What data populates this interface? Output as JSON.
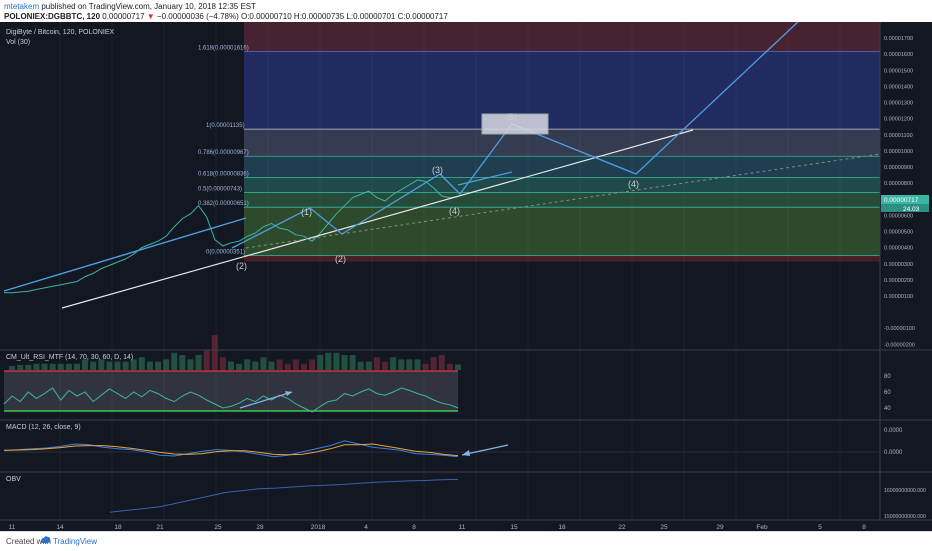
{
  "header": {
    "author": "mtetakem",
    "published": "published on TradingView.com, January 10, 2018 12:35 EST",
    "symbol": "POLONIEX:DGBBTC, 120",
    "last": "0.00000717",
    "change": "−0.00000036 (−4.78%)",
    "ohlc": "O:0.00000710 H:0.00000735 L:0.00000701 C:0.00000717"
  },
  "legend": {
    "title": "DigiByte / Bitcoin, 120, POLONIEX",
    "vol": "Vol (30)",
    "rsi": "CM_Ult_RSI_MTF (14, 70, 30, 60, D, 14)",
    "macd": "MACD (12, 26, close, 9)",
    "obv": "OBV"
  },
  "colors": {
    "background": "#131722",
    "price_line": "#3bb5a6",
    "trend_blue": "#4f9ee0",
    "trend_white": "#e8e8e8",
    "rsi_line": "#3bb5a6",
    "rsi_band_high": "#e5364e",
    "rsi_band_low": "#3ce84c",
    "macd_line": "#3b7fe0",
    "signal_line": "#e8a33c",
    "obv_line": "#3b5fb0",
    "arrow": "#8ab4e8"
  },
  "chart_data": [
    {
      "type": "line",
      "name": "price",
      "x_ticks": [
        "11",
        "14",
        "18",
        "21",
        "25",
        "28",
        "2018",
        "4",
        "8",
        "11",
        "15",
        "18",
        "22",
        "25",
        "29",
        "Feb",
        "5",
        "8"
      ],
      "y_ticks": [
        "0.00001700",
        "0.00001600",
        "0.00001500",
        "0.00001400",
        "0.00001300",
        "0.00001200",
        "0.00001100",
        "0.00001000",
        "0.00000900",
        "0.00000800",
        "0.00000700",
        "0.00000600",
        "0.00000500",
        "0.00000400",
        "0.00000300",
        "0.00000200",
        "0.00000100",
        "-0.00000100",
        "-0.00000200"
      ],
      "ylim": [
        -2.35e-06,
        1.75e-05
      ],
      "price_label": "0.00000717",
      "price_sublabel": "24.03",
      "values": [
        1.2e-06,
        1.2e-06,
        1.25e-06,
        1.3e-06,
        1.4e-06,
        1.5e-06,
        1.6e-06,
        1.7e-06,
        1.8e-06,
        1.9e-06,
        2.2e-06,
        2.4e-06,
        2.7e-06,
        2.9e-06,
        3.1e-06,
        3.3e-06,
        3.6e-06,
        4e-06,
        4.2e-06,
        4.4e-06,
        4.7e-06,
        5.3e-06,
        5.8e-06,
        6.1e-06,
        6.6e-06,
        5.9e-06,
        4.5e-06,
        4.1e-06,
        4.3e-06,
        4.4e-06,
        4.7e-06,
        4.9e-06,
        5.3e-06,
        5.5e-06,
        5.2e-06,
        5.1e-06,
        4.8e-06,
        4.7e-06,
        4.4e-06,
        4.9e-06,
        5.5e-06,
        6.1e-06,
        6.6e-06,
        7.1e-06,
        7.3e-06,
        7.5e-06,
        7.1e-06,
        6.9e-06,
        7.3e-06,
        7.6e-06,
        7.9e-06,
        8.2e-06,
        8.1e-06,
        7.7e-06,
        7.2e-06,
        7.1e-06,
        7.17e-06
      ],
      "fib_levels": [
        {
          "label": "1(0.00001135)",
          "value": 1.135e-05
        },
        {
          "label": "0.786(0.00000967)",
          "value": 9.67e-06
        },
        {
          "label": "0.618(0.00000836)",
          "value": 8.36e-06
        },
        {
          "label": "0.5(0.00000743)",
          "value": 7.43e-06
        },
        {
          "label": "0.382(0.00000651)",
          "value": 6.51e-06
        },
        {
          "label": "0(0.00000351)",
          "value": 3.51e-06
        },
        {
          "label": "1.618(0.00001616)",
          "value": 1.616e-05
        }
      ],
      "wave_labels": [
        "(1)",
        "(2)",
        "(2)",
        "(3)",
        "(4)",
        "(5)",
        "(4)"
      ]
    },
    {
      "type": "line",
      "name": "CM_Ult_RSI_MTF",
      "y_ticks": [
        "80",
        "60",
        "40"
      ],
      "ylim": [
        25,
        100
      ],
      "bands": [
        70,
        30
      ],
      "values": [
        45,
        55,
        48,
        60,
        52,
        58,
        65,
        50,
        62,
        55,
        60,
        48,
        56,
        64,
        58,
        52,
        60,
        54,
        62,
        58,
        52,
        48,
        55,
        60,
        56,
        50,
        45,
        40,
        42,
        46,
        52,
        48,
        55,
        50,
        56,
        52,
        45,
        40,
        35,
        42,
        48,
        50,
        58,
        55,
        60,
        64,
        58,
        56,
        60,
        65,
        62,
        58,
        55,
        50,
        46,
        44,
        40
      ]
    },
    {
      "type": "line",
      "name": "MACD",
      "y_ticks": [
        "0.0000",
        "0.0000"
      ],
      "values": [
        0.1,
        0.15,
        0.2,
        0.25,
        0.35,
        0.5,
        0.45,
        0.3,
        0.2,
        0.15,
        0.0,
        -0.2,
        -0.25,
        -0.1,
        0.05,
        0.15,
        0.1,
        0.0,
        -0.15,
        -0.3,
        -0.2,
        0.0,
        0.2,
        0.4,
        0.7,
        0.5,
        0.3,
        0.2,
        0.1,
        -0.1,
        -0.15,
        -0.2,
        -0.3
      ]
    },
    {
      "type": "line",
      "name": "OBV",
      "y_ticks": [
        "16000000000.000",
        "15000000000.000"
      ],
      "values": [
        0.05,
        0.1,
        0.15,
        0.2,
        0.3,
        0.4,
        0.5,
        0.6,
        0.65,
        0.7,
        0.72,
        0.75,
        0.78,
        0.8,
        0.82,
        0.85,
        0.88,
        0.9,
        0.92,
        0.93,
        0.95,
        0.96
      ]
    }
  ]
}
